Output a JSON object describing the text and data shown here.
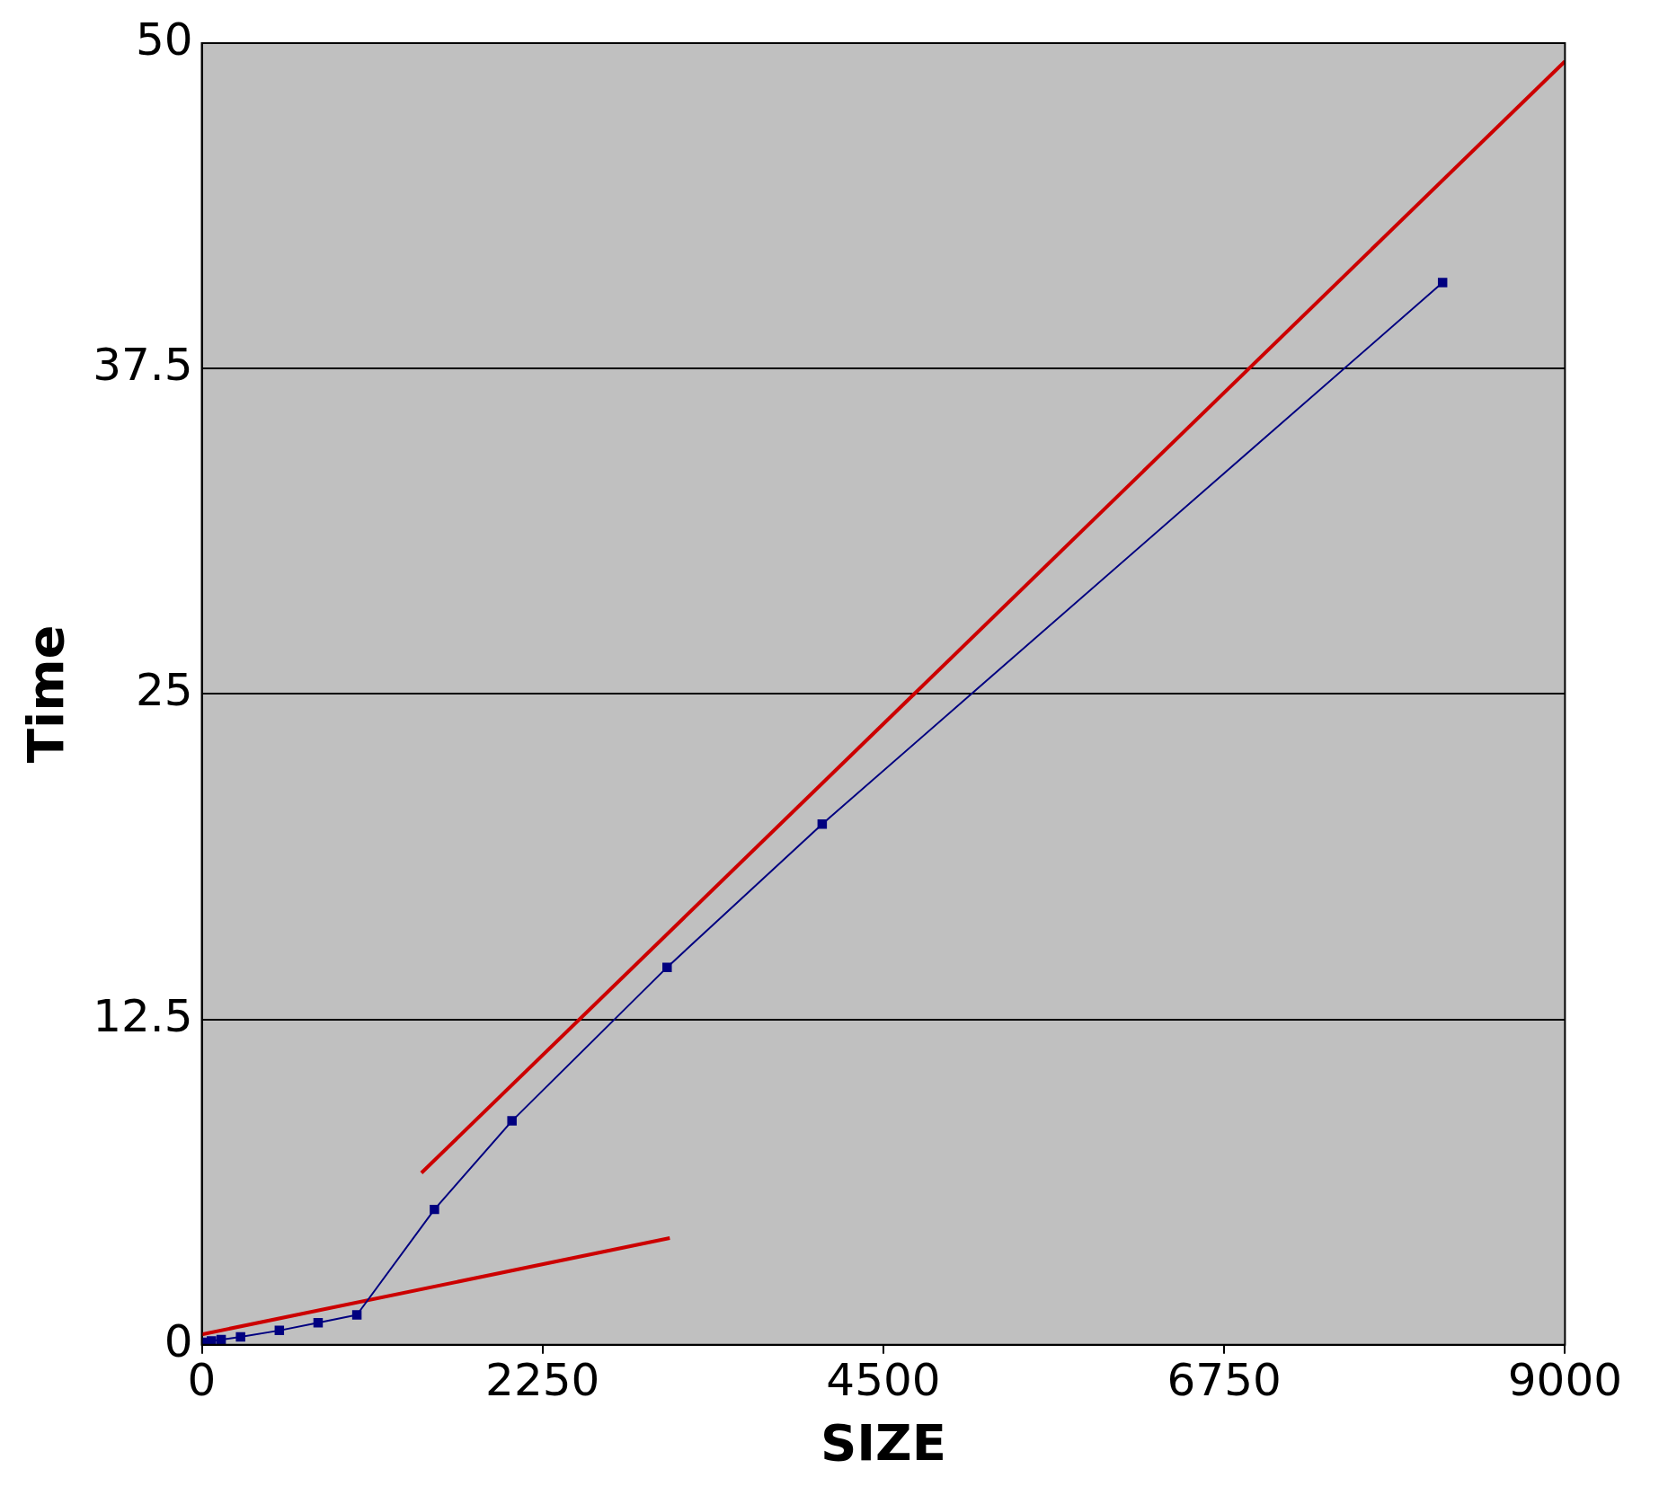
{
  "chart_data": {
    "type": "line",
    "xlabel": "SIZE",
    "ylabel": "Time",
    "xlim": [
      0,
      9000
    ],
    "xticks": [
      0,
      2250,
      4500,
      6750,
      9000
    ],
    "ylim": [
      0,
      50
    ],
    "yticks": [
      0,
      12.5,
      25,
      37.5,
      50
    ],
    "grid": "y",
    "legend": false,
    "series": [
      {
        "type": "line",
        "color": "#000080",
        "marker": "square",
        "x": [
          0,
          16,
          32,
          64,
          128,
          256,
          512,
          768,
          1024,
          1536,
          2048,
          3072,
          4096,
          8192
        ],
        "values": [
          0,
          0.05,
          0.1,
          0.15,
          0.2,
          0.3,
          0.55,
          0.85,
          1.15,
          5.2,
          8.6,
          14.5,
          20,
          40.8
        ]
      },
      {
        "type": "line",
        "color": "#cc0000",
        "marker": "none",
        "x": [
          0,
          3090
        ],
        "values": [
          0.4,
          4.1
        ]
      },
      {
        "type": "line",
        "color": "#cc0000",
        "marker": "none",
        "x": [
          1450,
          9000
        ],
        "values": [
          6.6,
          49.3
        ]
      }
    ]
  }
}
